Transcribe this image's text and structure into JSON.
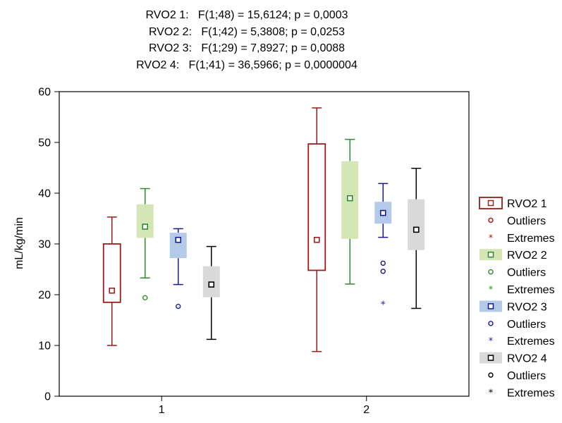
{
  "chart_data": {
    "type": "boxplot",
    "title_lines": [
      "RVO2 1:   F(1;48) = 15,6124; p = 0,0003",
      "RVO2 2:   F(1;42) = 5,3808; p = 0,0253",
      "RVO2 3:   F(1;29) = 7,8927; p = 0,0088",
      "RVO2 4:   F(1;41) = 36,5966; p = 0,0000004"
    ],
    "ylabel": "mL/kg/min",
    "xlabel": "",
    "ylim": [
      0,
      60
    ],
    "yticks": [
      0,
      10,
      20,
      30,
      40,
      50,
      60
    ],
    "categories": [
      "1",
      "2"
    ],
    "grid": false,
    "legend_position": "right",
    "series": [
      {
        "name": "RVO2 1",
        "color": "#9b1b1b",
        "fill": "#ffffff",
        "outliers_label": "Outliers",
        "extremes_label": "Extremes",
        "boxes": [
          {
            "category": "1",
            "min": 10,
            "q1": 18.5,
            "median": 20.8,
            "q3": 30,
            "max": 35.3,
            "outliers": [],
            "extremes": []
          },
          {
            "category": "2",
            "min": 8.8,
            "q1": 24.8,
            "median": 30.8,
            "q3": 49.7,
            "max": 56.8,
            "outliers": [],
            "extremes": []
          }
        ]
      },
      {
        "name": "RVO2 2",
        "color": "#2e8b2e",
        "fill": "#d4e6b5",
        "outliers_label": "Outliers",
        "extremes_label": "Extremes",
        "boxes": [
          {
            "category": "1",
            "min": 23.3,
            "q1": 31.2,
            "median": 33.4,
            "q3": 37.8,
            "max": 40.9,
            "outliers": [
              19.4
            ],
            "extremes": []
          },
          {
            "category": "2",
            "min": 22.1,
            "q1": 31,
            "median": 39,
            "q3": 46.3,
            "max": 50.6,
            "outliers": [],
            "extremes": []
          }
        ]
      },
      {
        "name": "RVO2 3",
        "color": "#1a1a8c",
        "fill": "#b3cbe8",
        "outliers_label": "Outliers",
        "extremes_label": "Extremes",
        "boxes": [
          {
            "category": "1",
            "min": 22,
            "q1": 27.2,
            "median": 30.8,
            "q3": 32.2,
            "max": 33,
            "outliers": [
              17.7
            ],
            "extremes": []
          },
          {
            "category": "2",
            "min": 31.3,
            "q1": 34,
            "median": 36.1,
            "q3": 38.3,
            "max": 41.9,
            "outliers": [
              26.2,
              24.6
            ],
            "extremes": [
              18.1
            ]
          }
        ]
      },
      {
        "name": "RVO2 4",
        "color": "#000000",
        "fill": "#d9d9d9",
        "outliers_label": "Outliers",
        "extremes_label": "Extremes",
        "boxes": [
          {
            "category": "1",
            "min": 11.2,
            "q1": 19.5,
            "median": 22,
            "q3": 25.6,
            "max": 29.5,
            "outliers": [],
            "extremes": []
          },
          {
            "category": "2",
            "min": 17.3,
            "q1": 28.8,
            "median": 32.8,
            "q3": 38.8,
            "max": 44.9,
            "outliers": [],
            "extremes": []
          }
        ]
      }
    ]
  }
}
